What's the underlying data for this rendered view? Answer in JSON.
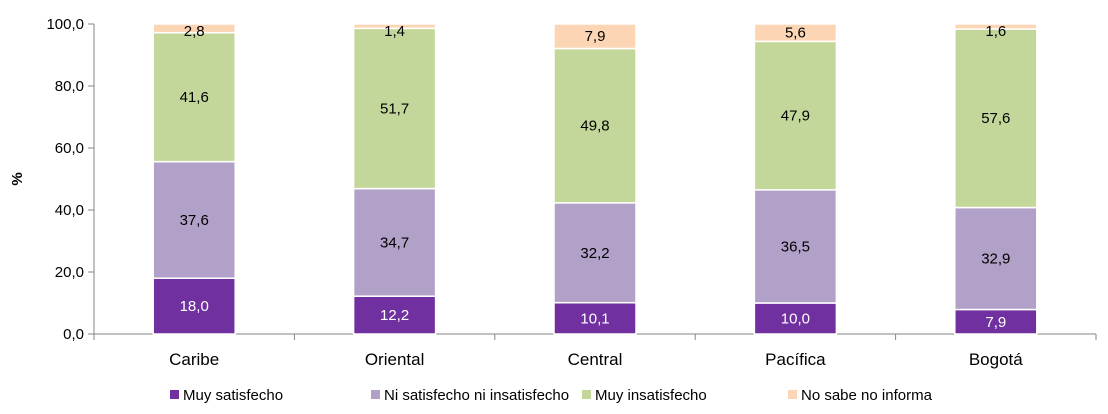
{
  "chart_data": {
    "type": "bar",
    "stacked": true,
    "categories": [
      "Caribe",
      "Oriental",
      "Central",
      "Pacífica",
      "Bogotá"
    ],
    "series": [
      {
        "name": "Muy satisfecho",
        "values": [
          18.0,
          12.2,
          10.1,
          10.0,
          7.9
        ],
        "labels": [
          "18,0",
          "12,2",
          "10,1",
          "10,0",
          "7,9"
        ],
        "color": "#7030a0",
        "label_color": "#ffffff"
      },
      {
        "name": "Ni satisfecho ni insatisfecho",
        "values": [
          37.6,
          34.7,
          32.2,
          36.5,
          32.9
        ],
        "labels": [
          "37,6",
          "34,7",
          "32,2",
          "36,5",
          "32,9"
        ],
        "color": "#b1a0c7",
        "label_color": "#000000"
      },
      {
        "name": "Muy insatisfecho",
        "values": [
          41.6,
          51.7,
          49.8,
          47.9,
          57.6
        ],
        "labels": [
          "41,6",
          "51,7",
          "49,8",
          "47,9",
          "57,6"
        ],
        "color": "#c4d79b",
        "label_color": "#000000"
      },
      {
        "name": "No sabe no informa",
        "values": [
          2.8,
          1.4,
          7.9,
          5.6,
          1.6
        ],
        "labels": [
          "2,8",
          "1,4",
          "7,9",
          "5,6",
          "1,6"
        ],
        "color": "#fcd5b4",
        "label_color": "#000000"
      }
    ],
    "ylabel": "%",
    "ylim": [
      0,
      100
    ],
    "yticks": [
      "0,0",
      "20,0",
      "40,0",
      "60,0",
      "80,0",
      "100,0"
    ],
    "grid": false,
    "legend_position": "bottom"
  }
}
